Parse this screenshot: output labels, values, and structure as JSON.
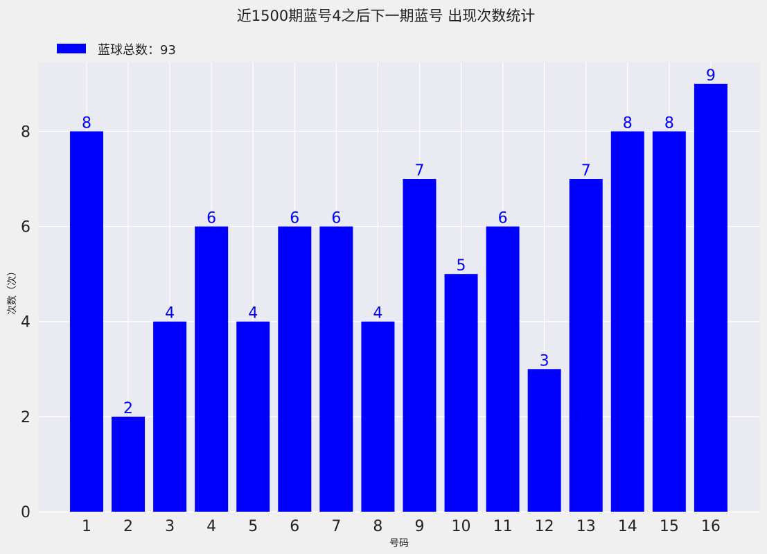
{
  "chart_data": {
    "type": "bar",
    "title": "近1500期蓝号4之后下一期蓝号 出现次数统计",
    "xlabel": "号码",
    "ylabel": "次数（次）",
    "categories": [
      "1",
      "2",
      "3",
      "4",
      "5",
      "6",
      "7",
      "8",
      "9",
      "10",
      "11",
      "12",
      "13",
      "14",
      "15",
      "16"
    ],
    "series": [
      {
        "name": "蓝球总数：93",
        "values": [
          8,
          2,
          4,
          6,
          4,
          6,
          6,
          4,
          7,
          5,
          6,
          3,
          7,
          8,
          8,
          9
        ]
      }
    ],
    "ylim": [
      0,
      9.45
    ],
    "yticks": [
      0,
      2,
      4,
      6,
      8
    ],
    "grid": true,
    "legend": "top-left",
    "bar_color": "#0000ff",
    "label_color": "#0000ff",
    "plot_background": "#eaeaf2",
    "figure_background": "#f0f0f0"
  }
}
